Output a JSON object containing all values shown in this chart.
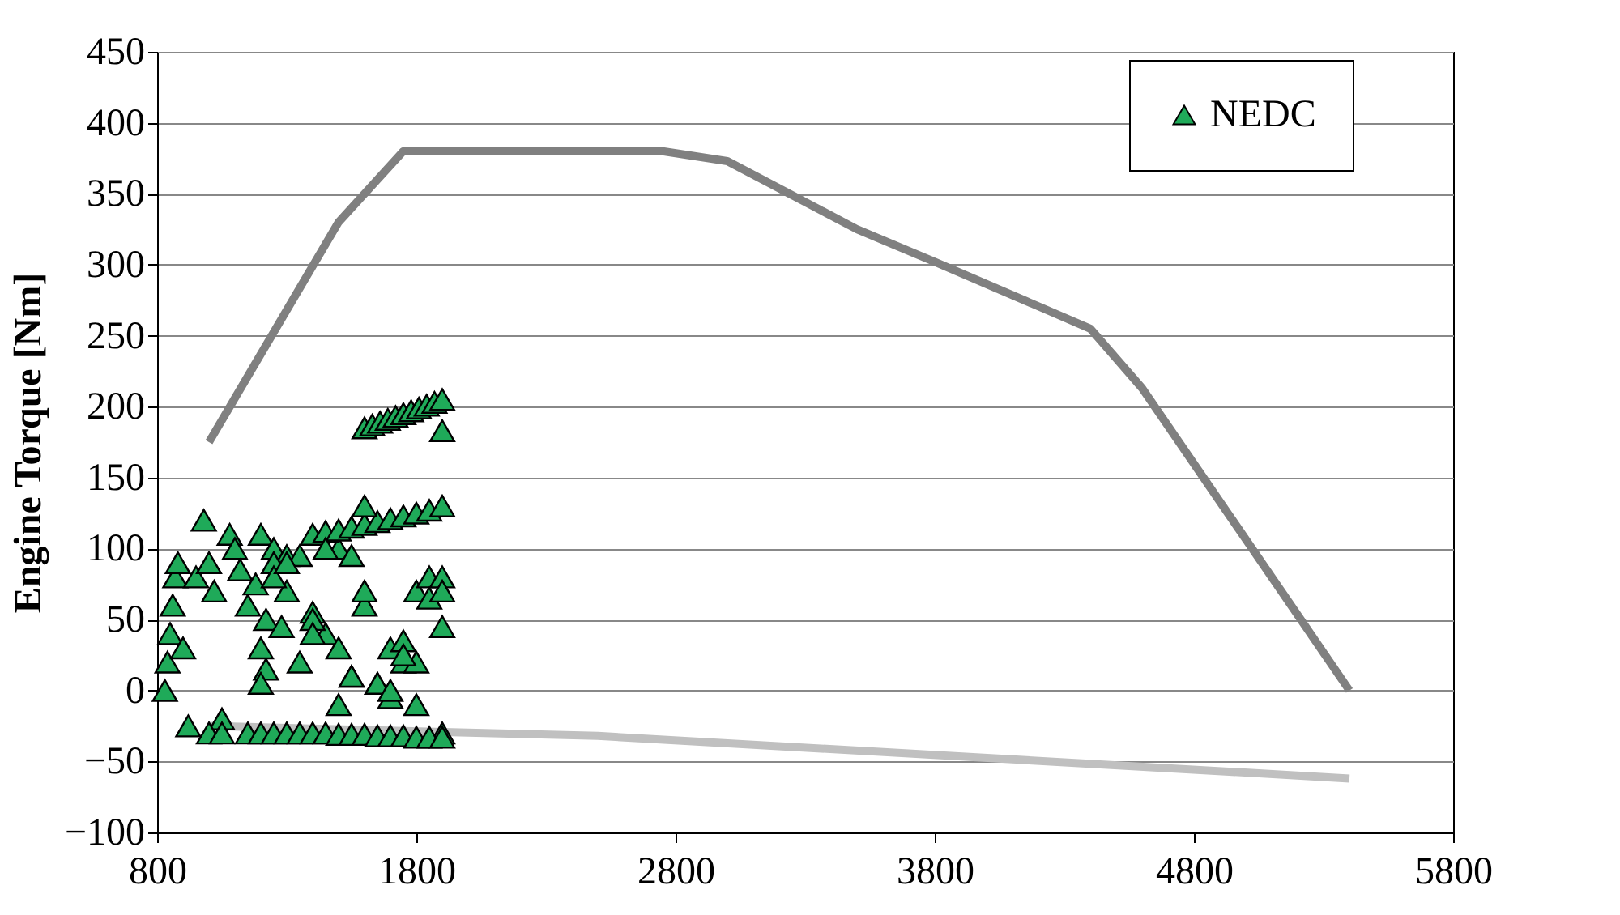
{
  "chart_data": {
    "type": "line",
    "ylabel": "Engine Torque [Nm]",
    "xlim": [
      800,
      5800
    ],
    "xticks": [
      800,
      1800,
      2800,
      3800,
      4800,
      5800
    ],
    "ylim": [
      -100,
      450
    ],
    "yticks": [
      -100,
      -50,
      0,
      50,
      100,
      150,
      200,
      250,
      300,
      350,
      400,
      450
    ],
    "grid": "y",
    "legend": "top right",
    "series": [
      {
        "color": "#808080",
        "x": [
          1000,
          1500,
          1750,
          2750,
          3000,
          3500,
          3800,
          4400,
          4600,
          5400
        ],
        "values": [
          175,
          330,
          380,
          380,
          373,
          325,
          302,
          255,
          213,
          0
        ]
      },
      {
        "color": "#c0c0c0",
        "x": [
          1000,
          2500,
          5400
        ],
        "values": [
          -25,
          -32,
          -62
        ]
      },
      {
        "name": "NEDC",
        "type": "scatter",
        "marker": "triangle",
        "color": "#1faa59",
        "x": [
          830,
          840,
          850,
          860,
          870,
          880,
          900,
          920,
          950,
          980,
          1000,
          1020,
          1050,
          1080,
          1100,
          1120,
          1150,
          1180,
          1200,
          1220,
          1250,
          1280,
          1300,
          1350,
          1400,
          1450,
          1500,
          1550,
          1600,
          1650,
          1700,
          1750,
          1800,
          1850,
          1900,
          1600,
          1630,
          1660,
          1690,
          1720,
          1750,
          1780,
          1810,
          1840,
          1870,
          1900,
          1900,
          1400,
          1450,
          1500,
          1550,
          1600,
          1650,
          1700,
          1750,
          1800,
          1850,
          1900,
          1600,
          1000,
          1050,
          1150,
          1200,
          1250,
          1300,
          1350,
          1400,
          1450,
          1500,
          1550,
          1600,
          1650,
          1700,
          1750,
          1800,
          1850,
          1900,
          1900,
          1900,
          1200,
          1220,
          1250,
          1300,
          1350,
          1400,
          1450,
          1500,
          1550,
          1600,
          1650,
          1700,
          1750,
          1800,
          1850,
          1200,
          1250,
          1300,
          1400,
          1500,
          1550,
          1700,
          1750,
          1800,
          1900
        ],
        "values": [
          0,
          20,
          40,
          60,
          80,
          90,
          30,
          -25,
          80,
          120,
          90,
          70,
          -20,
          110,
          100,
          85,
          60,
          75,
          110,
          50,
          100,
          45,
          95,
          20,
          55,
          40,
          100,
          10,
          60,
          5,
          30,
          20,
          70,
          80,
          -30,
          185,
          187,
          189,
          191,
          193,
          195,
          197,
          199,
          201,
          203,
          205,
          183,
          110,
          112,
          113,
          115,
          117,
          119,
          121,
          123,
          125,
          127,
          130,
          130,
          -30,
          -30,
          -30,
          -30,
          -30,
          -30,
          -30,
          -30,
          -30,
          -31,
          -31,
          -31,
          -32,
          -32,
          -32,
          -33,
          -33,
          -33,
          80,
          45,
          30,
          15,
          90,
          70,
          95,
          50,
          100,
          30,
          95,
          70,
          5,
          -5,
          35,
          20,
          65,
          5,
          80,
          90,
          40,
          -10,
          10,
          0,
          25,
          -10,
          70
        ]
      }
    ]
  }
}
